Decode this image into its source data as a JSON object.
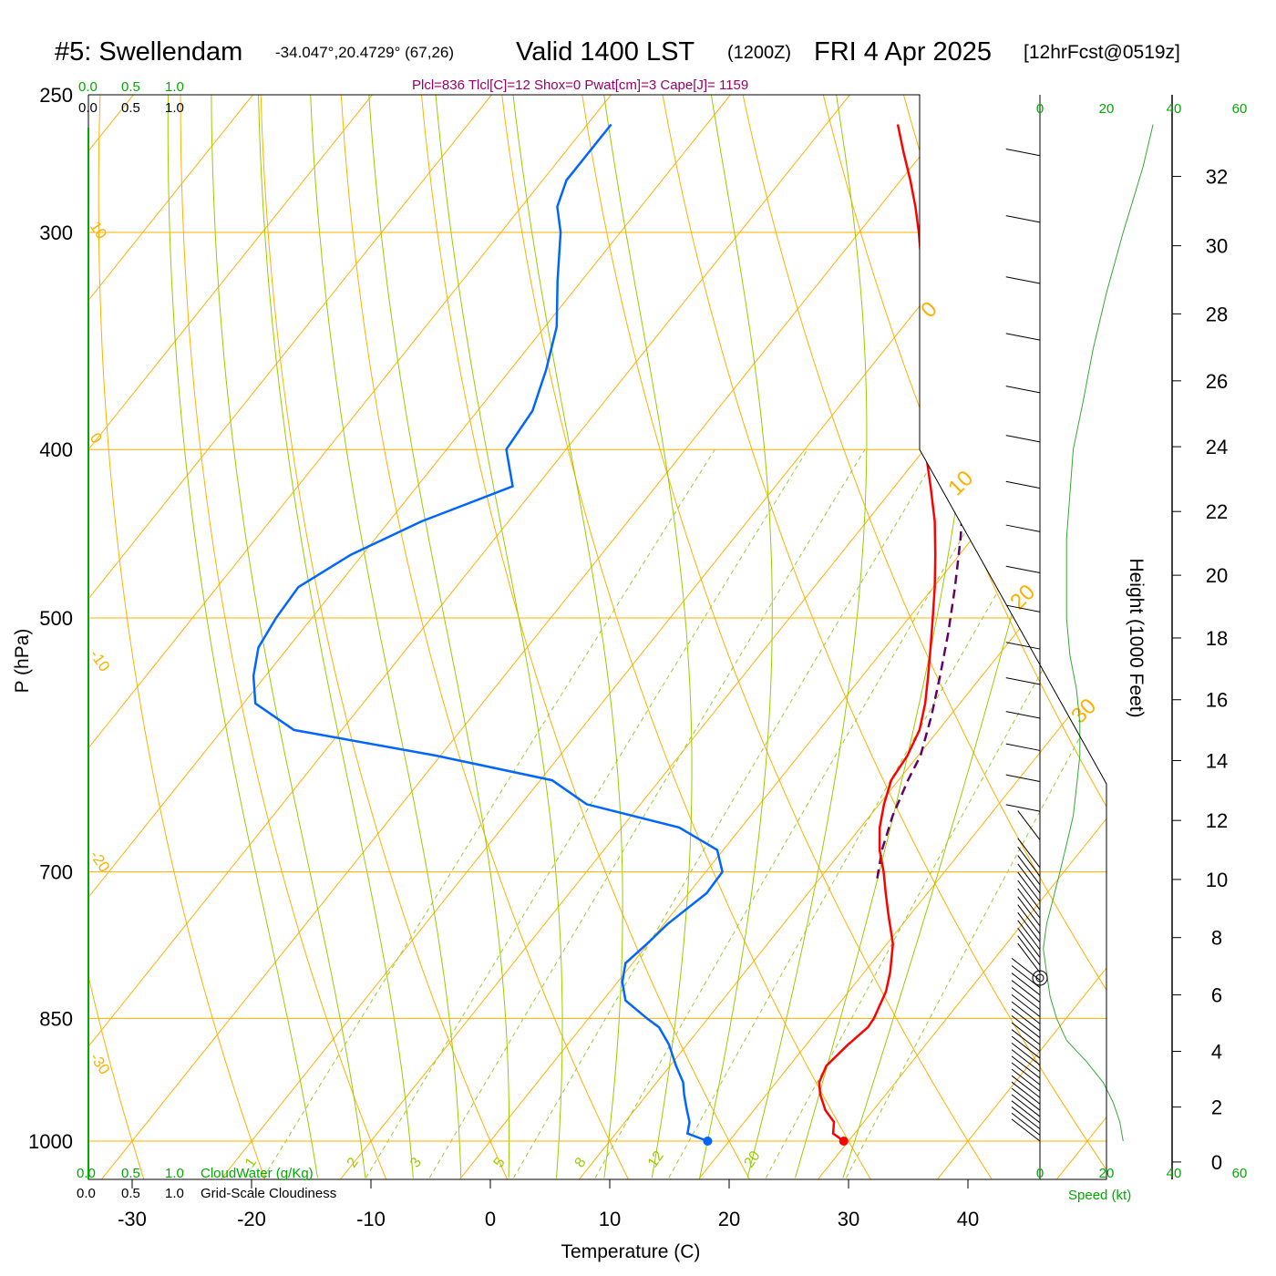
{
  "header": {
    "station": "#5: Swellendam",
    "coords": "-34.047°,20.4729° (67,26)",
    "valid": "Valid 1400 LST",
    "zulu": "(1200Z)",
    "date": "FRI 4 Apr 2025",
    "fcst": "[12hrFcst@0519z]",
    "indices": "Plcl=836 Tlcl[C]=12 Shox=0 Pwat[cm]=3 Cape[J]= 1159"
  },
  "labels": {
    "p_axis": "P (hPa)",
    "t_axis": "Temperature (C)",
    "h_axis": "Height (1000 Feet)",
    "cloudwater": "CloudWater (g/Kg)",
    "cloudiness": "Grid-Scale Cloudiness",
    "speed": "Speed (kt)",
    "cw_ticks": [
      "0.0",
      "0.5",
      "1.0"
    ],
    "speed_ticks": [
      "0",
      "20",
      "40",
      "60"
    ]
  },
  "colors": {
    "temperature": "#ff0000",
    "dewpoint": "#0066ff",
    "parcel": "#660066",
    "isobar_isotherm": "#ffb000",
    "moist_adiabat": "#99cc00",
    "mixing_ratio": "#99cc33",
    "cloud_axis": "#00aa00",
    "indices_text": "#990066"
  },
  "chart_data": {
    "type": "skew-t",
    "pressure_ticks": [
      250,
      300,
      400,
      500,
      700,
      850,
      1000
    ],
    "temp_ticks": [
      -30,
      -20,
      -10,
      0,
      10,
      20,
      30,
      40
    ],
    "height_ticks_kft": [
      0,
      2,
      4,
      6,
      8,
      10,
      12,
      14,
      16,
      18,
      20,
      22,
      24,
      26,
      28,
      30,
      32
    ],
    "isotherm_labels": [
      -30,
      -20,
      -10,
      0,
      10,
      20,
      30
    ],
    "dry_adiabat_labels": [
      10,
      0,
      -10,
      -20,
      -30
    ],
    "mixing_ratio_labels": [
      "1",
      "2",
      "3",
      "5",
      "8",
      "12",
      "20"
    ],
    "temperature": {
      "p": [
        1000,
        990,
        975,
        960,
        940,
        925,
        905,
        880,
        860,
        850,
        820,
        800,
        770,
        740,
        720,
        700,
        680,
        660,
        640,
        620,
        600,
        580,
        560,
        540,
        520,
        500,
        480,
        460,
        440,
        420,
        400,
        380,
        360,
        340,
        320,
        300,
        290,
        280,
        270,
        260
      ],
      "t": [
        29.6,
        28.2,
        27.5,
        26.0,
        24.5,
        23.6,
        23.1,
        23.5,
        24.0,
        23.9,
        23.1,
        22.2,
        20.5,
        18.1,
        16.5,
        14.9,
        13.1,
        11.6,
        10.4,
        9.4,
        9.1,
        8.4,
        7.1,
        5.5,
        3.8,
        2.0,
        0.1,
        -2.0,
        -4.3,
        -7.0,
        -9.9,
        -12.6,
        -15.4,
        -18.4,
        -21.4,
        -25.0,
        -27.0,
        -29.2,
        -31.6,
        -34.0
      ]
    },
    "dewpoint": {
      "p": [
        1000,
        990,
        975,
        960,
        940,
        925,
        905,
        880,
        860,
        850,
        830,
        810,
        790,
        770,
        750,
        720,
        700,
        680,
        660,
        640,
        620,
        600,
        580,
        560,
        540,
        520,
        500,
        480,
        460,
        440,
        420,
        400,
        380,
        360,
        340,
        320,
        300,
        290,
        280,
        270,
        260
      ],
      "td": [
        18.2,
        16.0,
        15.4,
        14.4,
        13.1,
        12.2,
        10.5,
        8.5,
        6.5,
        4.9,
        1.9,
        0.4,
        -0.6,
        -0.1,
        0.3,
        1.5,
        1.4,
        -0.5,
        -5.2,
        -14.5,
        -19.0,
        -30.4,
        -44.0,
        -49.0,
        -51.0,
        -52.5,
        -53.0,
        -53.2,
        -51.0,
        -47.3,
        -42.0,
        -45.0,
        -45.4,
        -47.0,
        -49.0,
        -52.0,
        -55.0,
        -57.0,
        -58.0,
        -58.0,
        -58.0
      ]
    },
    "parcel": {
      "p": [
        706,
        680,
        650,
        620,
        600,
        570,
        540,
        510,
        480,
        450,
        420,
        390,
        360,
        330,
        300,
        280,
        260
      ],
      "t": [
        14.8,
        13.3,
        11.9,
        10.8,
        10.2,
        8.5,
        6.5,
        4.3,
        1.8,
        -1.0,
        -4.2,
        -7.8,
        -12.0,
        -16.7,
        -22.3,
        -26.6,
        -31.6
      ]
    },
    "surface": {
      "t": 29.6,
      "td": 18.2
    },
    "wind_profile_kt": {
      "p": [
        1000,
        975,
        950,
        925,
        900,
        875,
        850,
        825,
        800,
        775,
        750,
        725,
        700,
        675,
        650,
        625,
        600,
        575,
        550,
        525,
        500,
        475,
        450,
        425,
        400,
        375,
        350,
        325,
        300,
        275,
        260
      ],
      "speed": [
        25,
        24,
        22,
        19,
        14,
        8,
        5,
        3,
        2,
        1,
        2,
        4,
        6,
        8,
        10,
        11,
        12,
        12,
        11,
        9,
        8,
        8,
        8,
        9,
        10,
        13,
        16,
        20,
        25,
        31,
        34
      ]
    }
  }
}
